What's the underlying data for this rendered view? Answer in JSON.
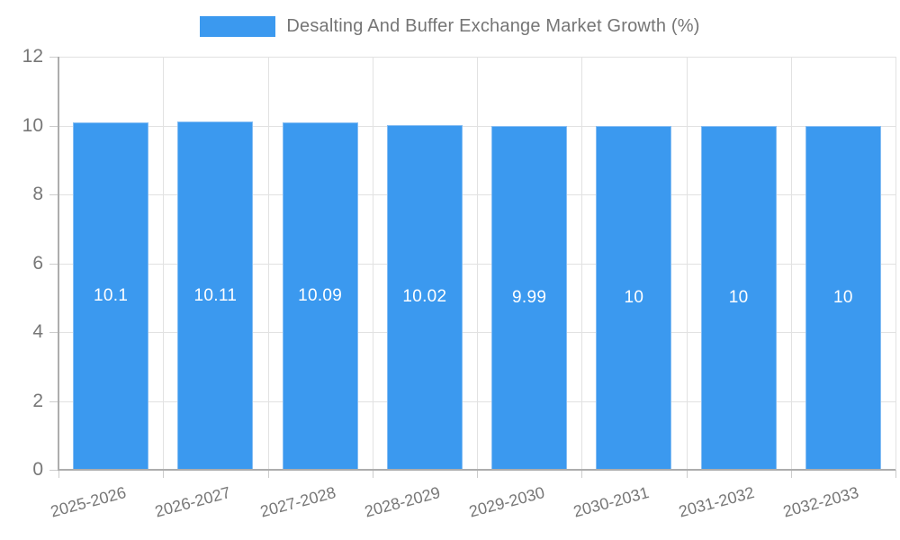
{
  "chart_data": {
    "type": "bar",
    "title": "Desalting And Buffer Exchange Market Growth (%)",
    "legend": [
      {
        "label": "Desalting And Buffer Exchange Market Growth (%)",
        "color": "#3b99ef"
      }
    ],
    "legend_position": "top-center",
    "categories": [
      "2025-2026",
      "2026-2027",
      "2027-2028",
      "2028-2029",
      "2029-2030",
      "2030-2031",
      "2031-2032",
      "2032-2033"
    ],
    "values": [
      10.1,
      10.11,
      10.09,
      10.02,
      9.99,
      10,
      10,
      10
    ],
    "value_labels": [
      "10.1",
      "10.11",
      "10.09",
      "10.02",
      "9.99",
      "10",
      "10",
      "10"
    ],
    "xlabel": "",
    "ylabel": "",
    "ylim": [
      0,
      12
    ],
    "yticks": [
      0,
      2,
      4,
      6,
      8,
      10,
      12
    ],
    "grid": true,
    "x_tick_label_rotation_deg": -15,
    "colors": {
      "bar_fill": "#3b99ef",
      "bar_border": "#85bdf3",
      "grid": "#e2e2e2",
      "axis": "#adadad",
      "tick": "#cccccc",
      "axis_label_text": "#777777",
      "title_text": "#757575",
      "value_label_text": "#ffffff",
      "background": "#ffffff"
    }
  }
}
